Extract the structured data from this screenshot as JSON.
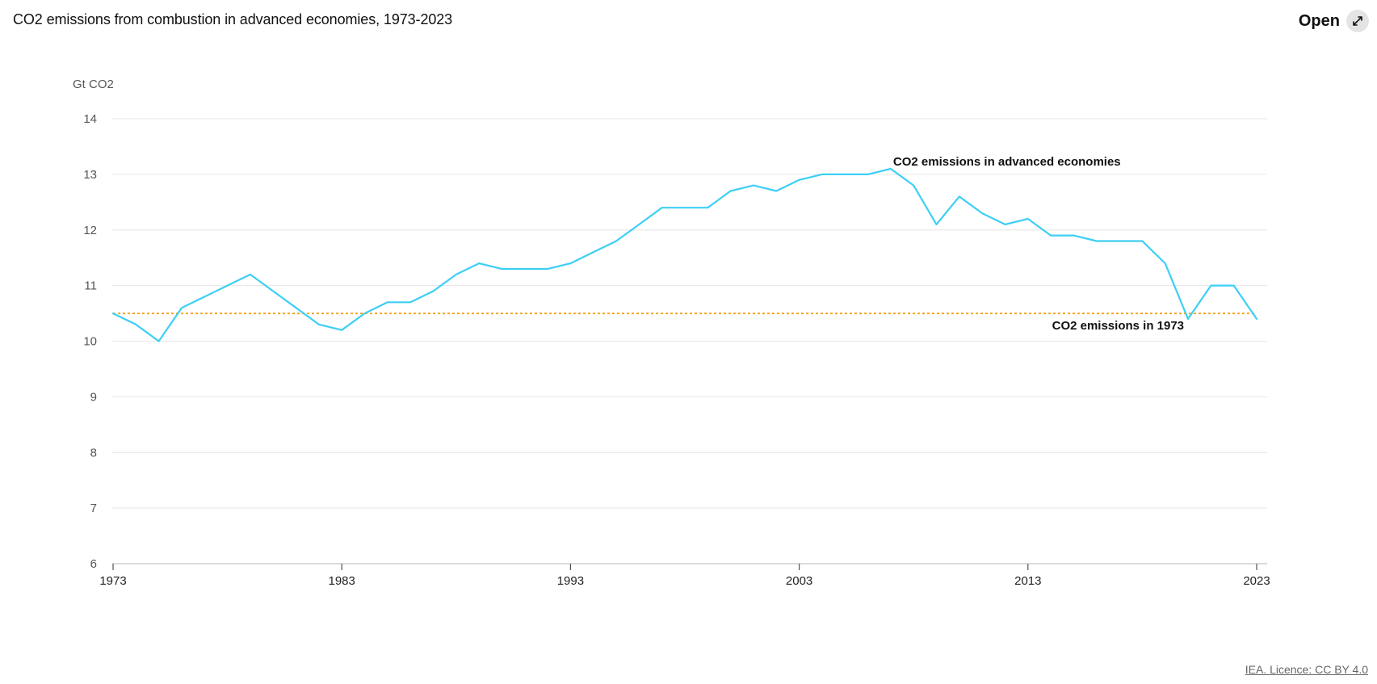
{
  "header": {
    "title": "CO2 emissions from combustion in advanced economies, 1973-2023",
    "open_label": "Open"
  },
  "footer": {
    "licence": "IEA. Licence: CC BY 4.0"
  },
  "colors": {
    "series_line": "#3dcff5",
    "reference_line": "#f5a623",
    "grid": "#e6e6e6",
    "axis": "#c8c8c8"
  },
  "chart_data": {
    "type": "line",
    "title": "CO2 emissions from combustion in advanced economies, 1973-2023",
    "ylabel": "Gt CO2",
    "xlabel": "",
    "xlim": [
      1973,
      2023
    ],
    "ylim": [
      6,
      14
    ],
    "yticks": [
      "6",
      "7",
      "8",
      "9",
      "10",
      "11",
      "12",
      "13",
      "14"
    ],
    "xticks": [
      "1973",
      "1983",
      "1993",
      "2003",
      "2013",
      "2023"
    ],
    "grid": true,
    "x": [
      1973,
      1974,
      1975,
      1976,
      1977,
      1978,
      1979,
      1980,
      1981,
      1982,
      1983,
      1984,
      1985,
      1986,
      1987,
      1988,
      1989,
      1990,
      1991,
      1992,
      1993,
      1994,
      1995,
      1996,
      1997,
      1998,
      1999,
      2000,
      2001,
      2002,
      2003,
      2004,
      2005,
      2006,
      2007,
      2008,
      2009,
      2010,
      2011,
      2012,
      2013,
      2014,
      2015,
      2016,
      2017,
      2018,
      2019,
      2020,
      2021,
      2022,
      2023
    ],
    "series": [
      {
        "name": "CO2 emissions in advanced economies",
        "values": [
          10.5,
          10.3,
          10.0,
          10.6,
          10.8,
          11.0,
          11.2,
          10.9,
          10.6,
          10.3,
          10.2,
          10.5,
          10.7,
          10.7,
          10.9,
          11.2,
          11.4,
          11.3,
          11.3,
          11.3,
          11.4,
          11.6,
          11.8,
          12.1,
          12.4,
          12.4,
          12.4,
          12.7,
          12.8,
          12.7,
          12.9,
          13.0,
          13.0,
          13.0,
          13.1,
          12.8,
          12.1,
          12.6,
          12.3,
          12.1,
          12.2,
          11.9,
          11.9,
          11.8,
          11.8,
          11.8,
          11.4,
          10.4,
          11.0,
          11.0,
          10.4
        ]
      }
    ],
    "reference_line": {
      "name": "CO2 emissions in 1973",
      "value": 10.5
    },
    "annotations": [
      {
        "text": "CO2 emissions in advanced economies",
        "x": 2007,
        "y": 13.1
      },
      {
        "text": "CO2 emissions in 1973",
        "x": 2020,
        "y": 10.5
      }
    ]
  }
}
